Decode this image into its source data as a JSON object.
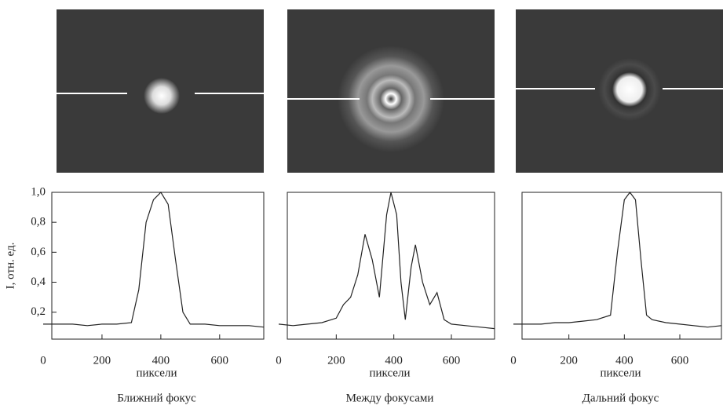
{
  "chart_data": [
    {
      "type": "line",
      "xlabel": "пиксели",
      "ylabel": "I, отн. ед.",
      "caption": "Ближний фокус",
      "x": [
        0,
        50,
        100,
        150,
        200,
        250,
        300,
        325,
        350,
        375,
        400,
        425,
        450,
        475,
        500,
        550,
        600,
        650,
        700,
        750
      ],
      "series": [
        {
          "color": "#222222",
          "values": [
            0.12,
            0.12,
            0.12,
            0.11,
            0.12,
            0.12,
            0.13,
            0.35,
            0.8,
            0.95,
            1.0,
            0.92,
            0.55,
            0.2,
            0.12,
            0.12,
            0.11,
            0.11,
            0.11,
            0.1
          ]
        }
      ],
      "xlim": [
        0,
        750
      ],
      "xticks": [
        0,
        200,
        400,
        600
      ],
      "ylim": [
        0.02,
        1.0
      ],
      "yticks": [
        {
          "value": 0.2,
          "label": "0,2"
        },
        {
          "value": 0.4,
          "label": "0,4"
        },
        {
          "value": 0.6,
          "label": "0,6"
        },
        {
          "value": 0.8,
          "label": "0,8"
        },
        {
          "value": 1.0,
          "label": "1,0"
        }
      ]
    },
    {
      "type": "line",
      "xlabel": "пиксели",
      "caption": "Между фокусами",
      "x": [
        0,
        50,
        100,
        150,
        200,
        225,
        250,
        275,
        300,
        325,
        350,
        375,
        390,
        410,
        425,
        440,
        460,
        475,
        500,
        525,
        550,
        575,
        600,
        650,
        700,
        750
      ],
      "series": [
        {
          "color": "#222222",
          "values": [
            0.12,
            0.11,
            0.12,
            0.13,
            0.16,
            0.25,
            0.3,
            0.45,
            0.72,
            0.55,
            0.3,
            0.85,
            1.0,
            0.85,
            0.4,
            0.15,
            0.5,
            0.65,
            0.4,
            0.25,
            0.33,
            0.15,
            0.12,
            0.11,
            0.1,
            0.09
          ]
        }
      ],
      "xlim": [
        0,
        750
      ],
      "xticks": [
        0,
        200,
        400,
        600
      ],
      "ylim": [
        0.02,
        1.0
      ]
    },
    {
      "type": "line",
      "xlabel": "пиксели",
      "caption": "Дальний фокус",
      "x": [
        0,
        50,
        100,
        150,
        200,
        250,
        300,
        350,
        375,
        400,
        420,
        440,
        460,
        480,
        500,
        550,
        600,
        650,
        700,
        750
      ],
      "series": [
        {
          "color": "#222222",
          "values": [
            0.12,
            0.12,
            0.12,
            0.13,
            0.13,
            0.14,
            0.15,
            0.18,
            0.6,
            0.95,
            1.0,
            0.95,
            0.55,
            0.18,
            0.15,
            0.13,
            0.12,
            0.11,
            0.1,
            0.11
          ]
        }
      ],
      "xlim": [
        0,
        750
      ],
      "xticks": [
        0,
        200,
        400,
        600
      ],
      "ylim": [
        0.02,
        1.0
      ]
    }
  ]
}
